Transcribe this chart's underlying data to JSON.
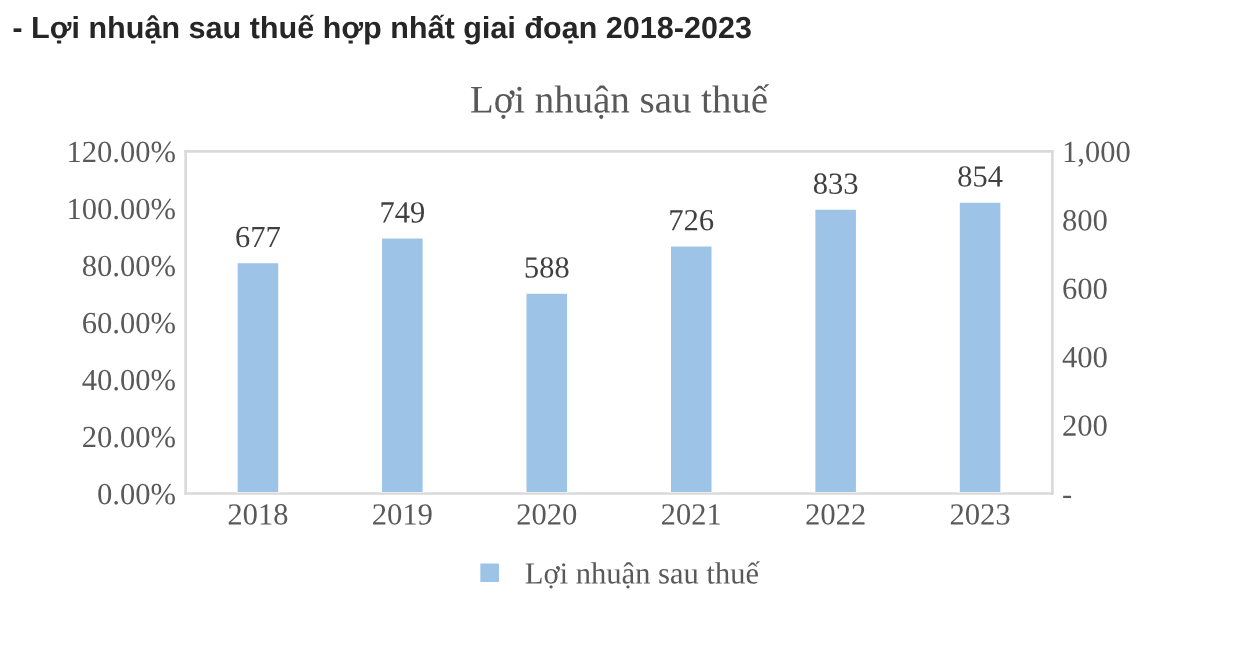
{
  "chart_data": {
    "type": "bar",
    "title": "- Lợi nhuận sau thuế hợp nhất giai đoạn 2018-2023",
    "subtitle": "Lợi nhuận sau thuế",
    "categories": [
      "2018",
      "2019",
      "2020",
      "2021",
      "2022",
      "2023"
    ],
    "series": [
      {
        "name": "Lợi nhuận sau thuế",
        "color": "#9dc3e6",
        "axis": "y2",
        "values": [
          677,
          749,
          588,
          726,
          833,
          854
        ]
      }
    ],
    "ylim": [
      0,
      120
    ],
    "yticks": [
      {
        "value": 0,
        "label": "0.00%"
      },
      {
        "value": 20,
        "label": "20.00%"
      },
      {
        "value": 40,
        "label": "40.00%"
      },
      {
        "value": 60,
        "label": "60.00%"
      },
      {
        "value": 80,
        "label": "80.00%"
      },
      {
        "value": 100,
        "label": "100.00%"
      },
      {
        "value": 120,
        "label": "120.00%"
      }
    ],
    "y2lim": [
      0,
      1000
    ],
    "y2ticks": [
      {
        "value": 0,
        "label": "-"
      },
      200,
      400,
      600,
      800,
      {
        "value": 1000,
        "label": "1,000"
      }
    ],
    "data_labels": true,
    "legend": "bottom",
    "grid": false
  }
}
